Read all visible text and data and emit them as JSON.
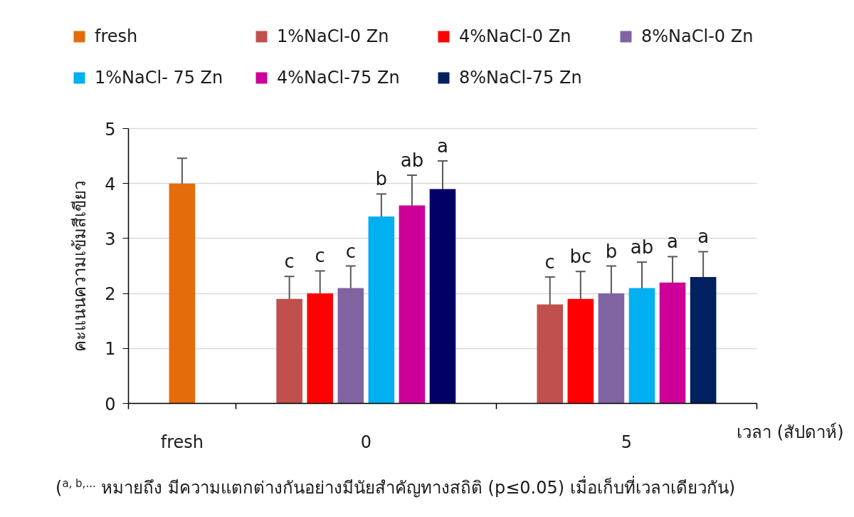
{
  "chart_data": {
    "type": "bar",
    "ylabel": "คะแนนความเข้มสีเขียว",
    "xlabel": "เวลา (สัปดาห์)",
    "categories": [
      "fresh",
      "0",
      "5"
    ],
    "series": [
      {
        "name": "fresh",
        "color": "#e46c0a",
        "values": [
          4.0,
          null,
          null
        ],
        "errors": [
          0.46,
          null,
          null
        ]
      },
      {
        "name": "1%NaCl-0 Zn",
        "color": "#c0504d",
        "values": [
          null,
          1.9,
          1.8
        ],
        "errors": [
          null,
          0.41,
          0.5
        ],
        "value_labels": [
          null,
          "c",
          "c"
        ]
      },
      {
        "name": "4%NaCl-0 Zn",
        "color": "#ff0000",
        "values": [
          null,
          2.0,
          1.9
        ],
        "errors": [
          null,
          0.41,
          0.5
        ],
        "value_labels": [
          null,
          "c",
          "bc"
        ]
      },
      {
        "name": "8%NaCl-0 Zn",
        "color": "#8064a2",
        "values": [
          null,
          2.1,
          2.0
        ],
        "errors": [
          null,
          0.4,
          0.5
        ],
        "value_labels": [
          null,
          "c",
          "b"
        ]
      },
      {
        "name": "1%NaCl- 75 Zn",
        "color": "#00b0f0",
        "values": [
          null,
          3.4,
          2.1
        ],
        "errors": [
          null,
          0.41,
          0.47
        ],
        "value_labels": [
          null,
          "b",
          "ab"
        ]
      },
      {
        "name": "4%NaCl-75 Zn",
        "color": "#cc0099",
        "values": [
          null,
          3.6,
          2.2
        ],
        "errors": [
          null,
          0.55,
          0.47
        ],
        "value_labels": [
          null,
          "ab",
          "a"
        ]
      },
      {
        "name": "8%NaCl-75 Zn",
        "color": "#002060",
        "colors": [
          "#002060",
          "#000066",
          "#002060"
        ],
        "values": [
          null,
          3.9,
          2.3
        ],
        "errors": [
          null,
          0.51,
          0.46
        ],
        "value_labels": [
          null,
          "a",
          "a"
        ]
      }
    ],
    "ylim": [
      0,
      5
    ],
    "yticks": [
      0,
      1,
      2,
      3,
      4,
      5
    ],
    "grid": "y",
    "legend": "top",
    "annotations": [
      "($^{a, b,...}$ หมายถึง มีความแตกต่างกันอย่างมีนัยสำคัญทางสถิติ (p≤0.05) เมื่อเก็บที่เวลาเดียวกัน)"
    ]
  }
}
